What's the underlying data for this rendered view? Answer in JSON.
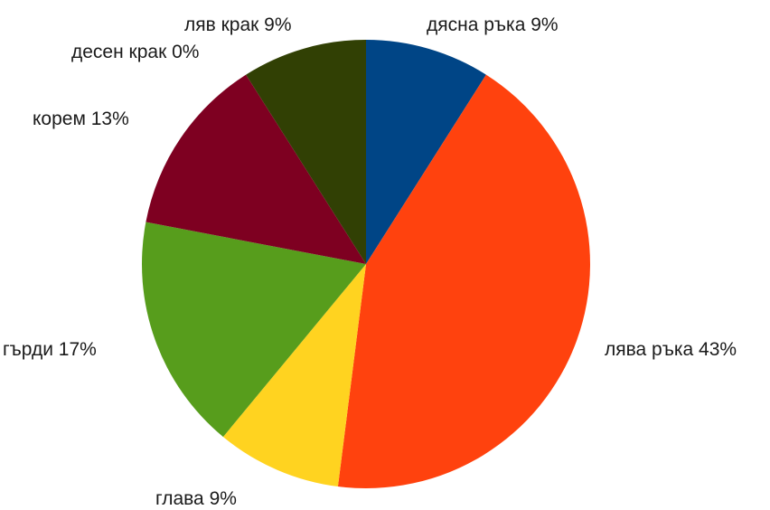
{
  "chart_data": {
    "type": "pie",
    "title": "",
    "slices": [
      {
        "label": "дясна ръка",
        "value": 9,
        "text": "дясна ръка 9%",
        "color": "#004586"
      },
      {
        "label": "лява ръка",
        "value": 43,
        "text": "лява ръка 43%",
        "color": "#ff420e"
      },
      {
        "label": "глава",
        "value": 9,
        "text": "глава 9%",
        "color": "#ffd320"
      },
      {
        "label": "гърди",
        "value": 17,
        "text": "гърди 17%",
        "color": "#579d1c"
      },
      {
        "label": "корем",
        "value": 13,
        "text": "корем 13%",
        "color": "#7e0021"
      },
      {
        "label": "десен крак",
        "value": 0,
        "text": "десен крак 0%",
        "color": "#83caff"
      },
      {
        "label": "ляв крак",
        "value": 9,
        "text": "ляв крак 9%",
        "color": "#314004"
      }
    ],
    "start_angle": "top",
    "direction": "clockwise",
    "legend": "none",
    "grid": false
  }
}
